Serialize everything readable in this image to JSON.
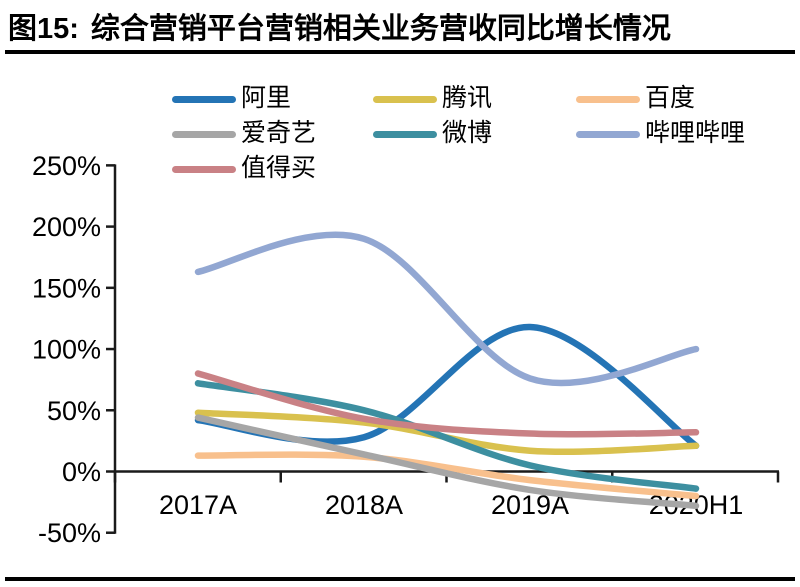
{
  "header": {
    "figure_label": "图15:",
    "title": "综合营销平台营销相关业务营收同比增长情况"
  },
  "chart_data": {
    "type": "line",
    "title": "综合营销平台营销相关业务营收同比增长情况",
    "line_style": "smooth",
    "grid": false,
    "legend_position": "top",
    "categories": [
      "2017A",
      "2018A",
      "2019A",
      "2020H1"
    ],
    "unit": "percent",
    "ylim": [
      -50,
      250
    ],
    "ytick_step": 50,
    "yticks": [
      250,
      200,
      150,
      100,
      50,
      0,
      -50
    ],
    "ytick_labels": [
      "250%",
      "200%",
      "150%",
      "100%",
      "50%",
      "0%",
      "-50%"
    ],
    "axis_color": "#1a1a1a",
    "series": [
      {
        "id": "ali",
        "name": "阿里",
        "color": "#2474B5",
        "values": [
          42,
          28,
          118,
          21
        ]
      },
      {
        "id": "tencent",
        "name": "腾讯",
        "color": "#D9C14E",
        "values": [
          48,
          40,
          17,
          21
        ]
      },
      {
        "id": "baidu",
        "name": "百度",
        "color": "#F8C08D",
        "values": [
          13,
          12,
          -7,
          -20
        ]
      },
      {
        "id": "iqiyi",
        "name": "爱奇艺",
        "color": "#A6A6A6",
        "values": [
          44,
          14,
          -15,
          -28
        ]
      },
      {
        "id": "weibo",
        "name": "微博",
        "color": "#3D8FA0",
        "values": [
          72,
          50,
          5,
          -14
        ]
      },
      {
        "id": "bilibili",
        "name": "哔哩哔哩",
        "color": "#92A7D2",
        "values": [
          163,
          190,
          76,
          100
        ]
      },
      {
        "id": "zhidemai",
        "name": "值得买",
        "color": "#C98185",
        "values": [
          80,
          43,
          31,
          32
        ]
      }
    ]
  }
}
